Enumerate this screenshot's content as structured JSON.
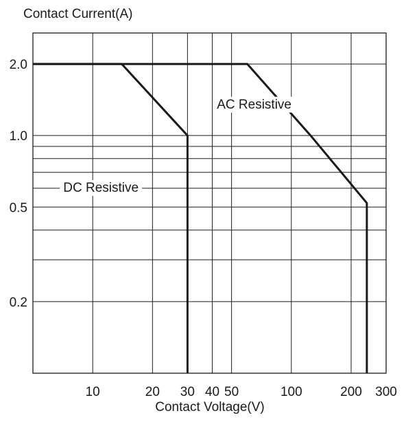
{
  "chart_data": {
    "type": "line",
    "ylabel": "Contact Current(A)",
    "xlabel": "Contact Voltage(V)",
    "x_scale": "log",
    "y_scale": "log",
    "xlim": [
      5,
      300
    ],
    "ylim": [
      0.1,
      2.7
    ],
    "x_ticks": [
      {
        "value": 10,
        "label": "10"
      },
      {
        "value": 20,
        "label": "20"
      },
      {
        "value": 30,
        "label": "30"
      },
      {
        "value": 40,
        "label": "40"
      },
      {
        "value": 50,
        "label": "50"
      },
      {
        "value": 100,
        "label": "100"
      },
      {
        "value": 200,
        "label": "200"
      },
      {
        "value": 300,
        "label": "300"
      }
    ],
    "x_gridlines": [
      10,
      20,
      30,
      40,
      50,
      100,
      200,
      300
    ],
    "y_ticks": [
      {
        "value": 2.0,
        "label": "2.0"
      },
      {
        "value": 1.0,
        "label": "1.0"
      },
      {
        "value": 0.5,
        "label": "0.5"
      },
      {
        "value": 0.2,
        "label": "0.2"
      }
    ],
    "y_gridlines": [
      2.0,
      1.0,
      0.9,
      0.8,
      0.7,
      0.6,
      0.5,
      0.4,
      0.3,
      0.2
    ],
    "grid": true,
    "series": [
      {
        "name": "DC Resistive",
        "color": "#1a1a1a",
        "points": [
          [
            5,
            2.0
          ],
          [
            14,
            2.0
          ],
          [
            30,
            1.0
          ],
          [
            30,
            0.1
          ]
        ],
        "label_at": [
          11,
          0.58
        ]
      },
      {
        "name": "AC Resistive",
        "color": "#1a1a1a",
        "points": [
          [
            5,
            2.0
          ],
          [
            60,
            2.0
          ],
          [
            125,
            1.0
          ],
          [
            240,
            0.52
          ],
          [
            240,
            0.1
          ]
        ],
        "label_at": [
          65,
          1.3
        ]
      }
    ]
  }
}
